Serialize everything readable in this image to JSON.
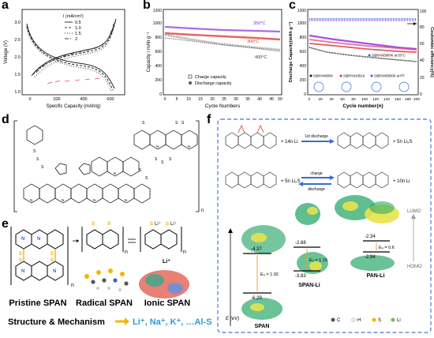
{
  "panels": {
    "a": {
      "label": "a",
      "xlabel": "Specific Capacity (mAh/g)",
      "ylabel": "Voltage (V)",
      "legend_title": "I (mA/cm²)",
      "legend_items": [
        "0.5",
        "1.0",
        "1.5",
        "2"
      ],
      "xticks": [
        "0",
        "200",
        "400",
        "600"
      ],
      "yticks": [
        "1.0",
        "1.5",
        "2.0",
        "2.5",
        "3.0"
      ]
    },
    "b": {
      "label": "b",
      "xlabel": "Cycle Numbers",
      "ylabel": "Capacity / mAh g⁻¹",
      "annotations": [
        "350°C",
        "300°C",
        "400°C"
      ],
      "legend_items": [
        "Charge capacity",
        "Discharge capacity"
      ],
      "xticks": [
        "0",
        "5",
        "10",
        "15",
        "20",
        "25",
        "30",
        "35",
        "40",
        "45",
        "50"
      ],
      "yticks": [
        "0",
        "200",
        "400",
        "600",
        "800",
        "1000",
        "1200"
      ]
    },
    "c": {
      "label": "c",
      "xlabel": "Cycle number(n)",
      "ylabel_left": "Discharge Capacity(mAh g⁻¹)",
      "ylabel_right": "Coulombic efficiency(%)",
      "legend_items": [
        "S@PAN800K",
        "S@PAN1851K",
        "S@PAN5800K at RT",
        "S@PAN5800K at 50°C"
      ],
      "xticks": [
        "0",
        "20",
        "40",
        "60",
        "80",
        "100",
        "120",
        "140",
        "160",
        "180",
        "200"
      ],
      "yticks_left": [
        "0",
        "200",
        "400",
        "600",
        "800",
        "1000",
        "1200"
      ],
      "yticks_right": [
        "0",
        "20",
        "40",
        "60",
        "80",
        "100"
      ]
    },
    "d": {
      "label": "d",
      "subscript": "n"
    },
    "e": {
      "label": "e",
      "names": [
        "Pristine SPAN",
        "Radical SPAN",
        "Ionic SPAN"
      ],
      "footer": "Structure & Mechanism",
      "ions": "Li⁺, Na⁺, K⁺, …Al-S",
      "li_labels": [
        "Li⁺",
        "Li⁺",
        "Li⁺"
      ]
    },
    "f": {
      "label": "f",
      "row1_left": "+ 14n Li",
      "row1_arrow": "1st discharge",
      "row1_right": "+ 5n Li₂S",
      "row2_left": "+ 5n Li₂S",
      "row2_arrow_top": "charge",
      "row2_arrow_bottom": "discharge",
      "row2_right": "+ 10n Li",
      "lumo": "LUMO",
      "homo": "HOMO",
      "eaxis": "E (eV)",
      "mol_labels": [
        "SPAN",
        "SPAN-Li",
        "PAN-Li"
      ],
      "levels": {
        "span": [
          "-4.37",
          "-6.29"
        ],
        "spanli": [
          "-2.68",
          "-3.83"
        ],
        "panli": [
          "-2.34",
          "-2.94"
        ]
      },
      "gaps": [
        "E₉ = 1.92",
        "E₉ = 1.15",
        "E₉ = 0.6"
      ],
      "legend": [
        "C",
        "H",
        "S",
        "Li"
      ]
    }
  },
  "colors": {
    "frame_blue": "#4a78c8",
    "li_blue": "#2f6fd6",
    "gold": "#f5b400",
    "red": "#d8332a",
    "purple": "#8b2bd6",
    "magenta": "#e0408f"
  }
}
